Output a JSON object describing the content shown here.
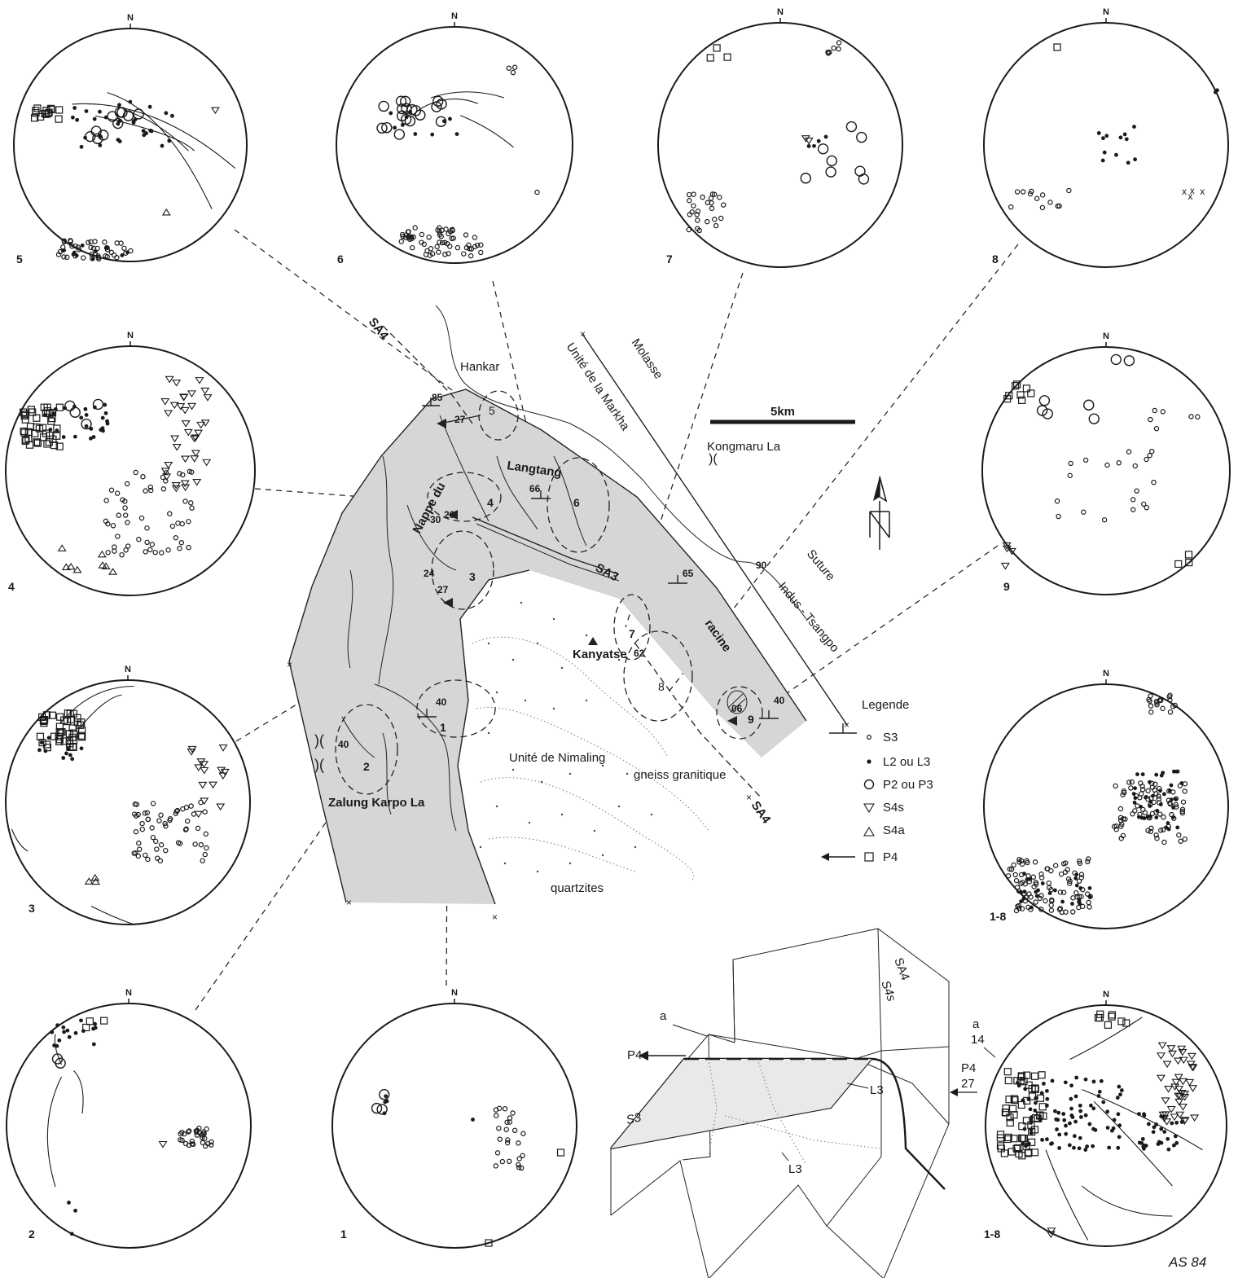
{
  "map": {
    "places": {
      "hankar": "Hankar",
      "langtang": "Langtang",
      "nappe_du": "Nappe du",
      "kanyatse": "Kanyatse",
      "kongmaru_la": "Kongmaru La",
      "zalung_karpo_la": "Zalung Karpo La",
      "unite_de_nimaling": "Unité de Nimaling",
      "gneiss_granitique": "gneiss granitique",
      "quartzites": "quartzites",
      "molasse": "Molasse",
      "unite_de_la_markha": "Unité de la Markha",
      "suture": "Suture",
      "indus_tsangpo": "Indus - Tsangpo",
      "racine": "racine"
    },
    "structure_labels": {
      "sa4_top": "SA4",
      "sa3": "SA3",
      "sa4_bottom": "SA4"
    },
    "scale_bar": "5km",
    "dip_values": [
      "85",
      "27",
      "66",
      "26",
      "30",
      "24",
      "27",
      "65",
      "90",
      "62",
      "40",
      "40",
      "06",
      "40"
    ],
    "site_numbers": [
      "1",
      "2",
      "3",
      "4",
      "5",
      "6",
      "7",
      "8",
      "9"
    ]
  },
  "legend": {
    "title": "Legende",
    "items": [
      {
        "symbol": "strike-dip + small circle",
        "label": "S3"
      },
      {
        "symbol": "dot",
        "label": "L2 ou L3"
      },
      {
        "symbol": "large circle",
        "label": "P2 ou P3"
      },
      {
        "symbol": "triangle down",
        "label": "S4s"
      },
      {
        "symbol": "triangle up",
        "label": "S4a"
      },
      {
        "symbol": "arrow + square",
        "label": "P4"
      }
    ]
  },
  "stereonets": [
    {
      "id": "5",
      "label": "5",
      "north": "N"
    },
    {
      "id": "6",
      "label": "6",
      "north": "N"
    },
    {
      "id": "7",
      "label": "7",
      "north": "N"
    },
    {
      "id": "8",
      "label": "8",
      "north": "N"
    },
    {
      "id": "4",
      "label": "4",
      "north": "N"
    },
    {
      "id": "9",
      "label": "9",
      "north": "N"
    },
    {
      "id": "3",
      "label": "3",
      "north": "N"
    },
    {
      "id": "1-8a",
      "label": "1-8",
      "north": "N"
    },
    {
      "id": "2",
      "label": "2",
      "north": "N"
    },
    {
      "id": "1",
      "label": "1",
      "north": "N"
    },
    {
      "id": "1-8b",
      "label": "1-8",
      "north": "N"
    }
  ],
  "block_diagram": {
    "labels": {
      "a": "a",
      "p4": "P4",
      "l3_right": "L3",
      "l3_lower": "L3",
      "s3": "S3",
      "sa4": "SA4",
      "s4s": "S4s"
    }
  },
  "net_1_8b_annotations": {
    "a": "a",
    "a_value": "14",
    "p4": "P4",
    "p4_value": "27"
  },
  "signature": "AS 84"
}
